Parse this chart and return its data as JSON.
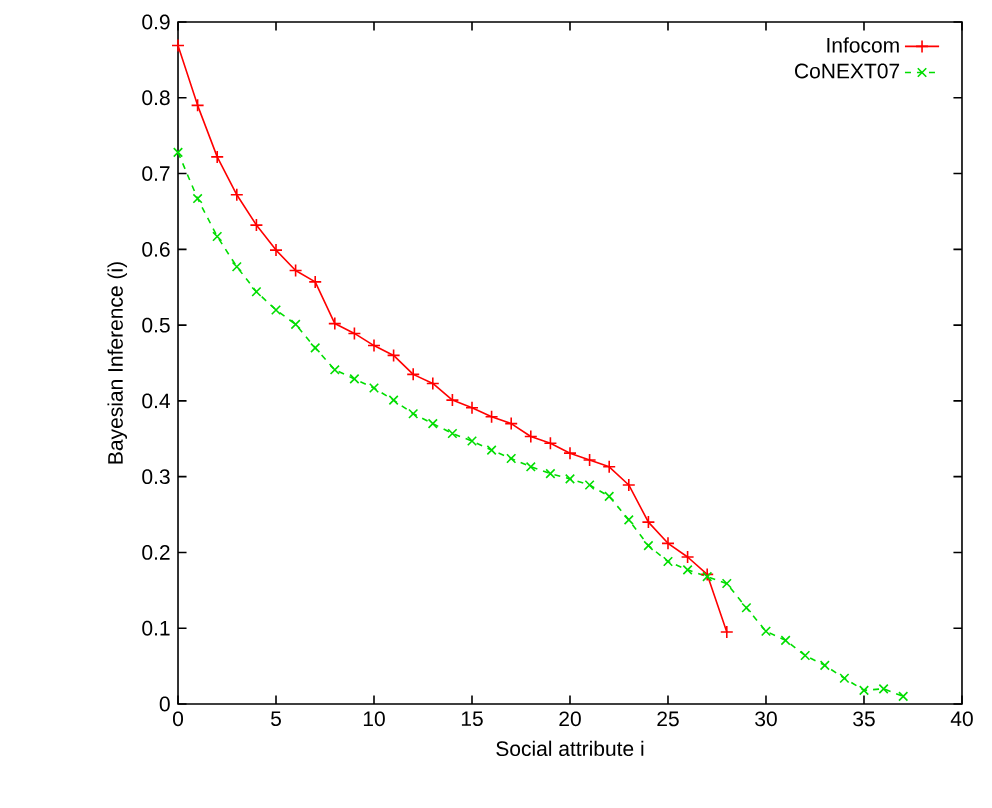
{
  "chart_data": {
    "type": "line",
    "xlabel": "Social attribute i",
    "ylabel": "Bayesian Inference (i)",
    "xlim": [
      0,
      40
    ],
    "ylim": [
      0,
      0.9
    ],
    "xticks": [
      0,
      5,
      10,
      15,
      20,
      25,
      30,
      35,
      40
    ],
    "yticks": [
      0,
      0.1,
      0.2,
      0.3,
      0.4,
      0.5,
      0.6,
      0.7,
      0.8,
      0.9
    ],
    "grid": false,
    "legend": "top right",
    "series": [
      {
        "name": "Infocom",
        "color": "#ff0000",
        "marker": "plus",
        "line_style": "solid",
        "x": [
          0,
          1,
          2,
          3,
          4,
          5,
          6,
          7,
          8,
          9,
          10,
          11,
          12,
          13,
          14,
          15,
          16,
          17,
          18,
          19,
          20,
          21,
          22,
          23,
          24,
          25,
          26,
          27,
          28
        ],
        "values": [
          0.869,
          0.79,
          0.722,
          0.672,
          0.632,
          0.599,
          0.572,
          0.557,
          0.502,
          0.489,
          0.473,
          0.46,
          0.435,
          0.423,
          0.401,
          0.391,
          0.379,
          0.37,
          0.353,
          0.344,
          0.331,
          0.322,
          0.313,
          0.289,
          0.24,
          0.212,
          0.194,
          0.171,
          0.095
        ]
      },
      {
        "name": "CoNEXT07",
        "color": "#00dd00",
        "marker": "cross",
        "line_style": "dashed",
        "x": [
          0,
          1,
          2,
          3,
          4,
          5,
          6,
          7,
          8,
          9,
          10,
          11,
          12,
          13,
          14,
          15,
          16,
          17,
          18,
          19,
          20,
          21,
          22,
          23,
          24,
          25,
          26,
          27,
          28,
          29,
          30,
          31,
          32,
          33,
          34,
          35,
          36,
          37
        ],
        "values": [
          0.728,
          0.667,
          0.617,
          0.577,
          0.544,
          0.52,
          0.501,
          0.47,
          0.441,
          0.429,
          0.417,
          0.401,
          0.383,
          0.37,
          0.357,
          0.347,
          0.335,
          0.324,
          0.313,
          0.304,
          0.297,
          0.289,
          0.274,
          0.243,
          0.209,
          0.188,
          0.177,
          0.168,
          0.159,
          0.127,
          0.096,
          0.084,
          0.064,
          0.051,
          0.034,
          0.018,
          0.02,
          0.01
        ]
      }
    ]
  }
}
